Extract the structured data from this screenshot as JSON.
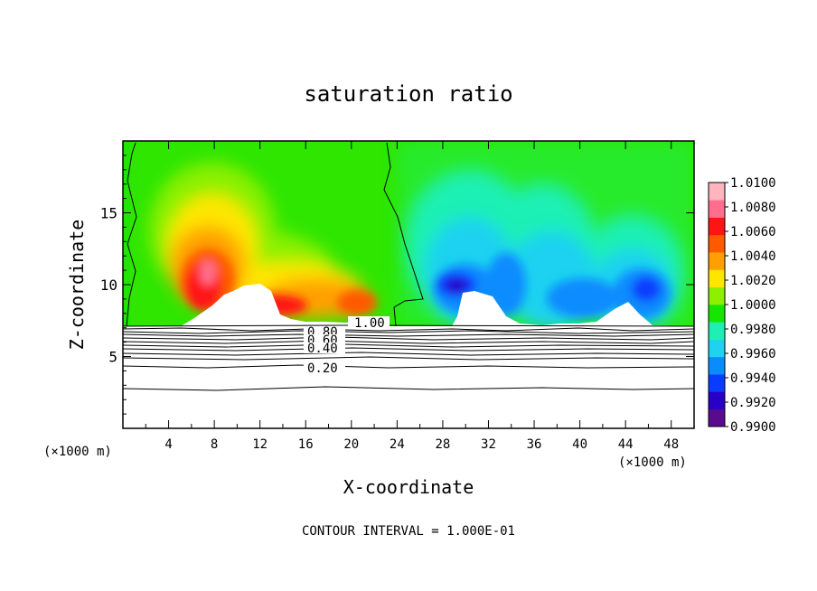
{
  "chart_data": {
    "type": "heatmap",
    "title": "saturation ratio",
    "xlabel": "X-coordinate",
    "ylabel": "Z-coordinate",
    "x_unit": "(×1000 m)",
    "z_unit": "(×1000 m)",
    "xlim": [
      0,
      50
    ],
    "ylim": [
      0,
      20
    ],
    "x_ticks": [
      4,
      8,
      12,
      16,
      20,
      24,
      28,
      32,
      36,
      40,
      44,
      48
    ],
    "y_ticks": [
      5,
      10,
      15
    ],
    "colorbar": {
      "levels": [
        0.99,
        0.992,
        0.994,
        0.996,
        0.998,
        1.0,
        1.002,
        1.004,
        1.006,
        1.008,
        1.01
      ],
      "labels": [
        "1.0100",
        "1.0080",
        "1.0060",
        "1.0040",
        "1.0020",
        "1.0000",
        "0.9980",
        "0.9960",
        "0.9940",
        "0.9920",
        "0.9900"
      ],
      "colors": [
        "#5a0a8c",
        "#2800c8",
        "#0a3cff",
        "#0a8cff",
        "#1ed2f0",
        "#1ef0b4",
        "#14e600",
        "#8cf000",
        "#ffe600",
        "#ffa000",
        "#ff5a00",
        "#ff1414",
        "#ff6e8c",
        "#ffb4be"
      ]
    },
    "contours": [
      {
        "label": "1.00",
        "z": 7.1
      },
      {
        "label": "0.80",
        "z": 6.7
      },
      {
        "label": "0.60",
        "z": 6.4
      },
      {
        "label": "0.40",
        "z": 5.9
      },
      {
        "label": "0.20",
        "z": 4.2
      }
    ],
    "footer": "CONTOUR INTERVAL = 1.000E-01"
  },
  "colors": {
    "axis": "#000000",
    "background": "#ffffff"
  }
}
